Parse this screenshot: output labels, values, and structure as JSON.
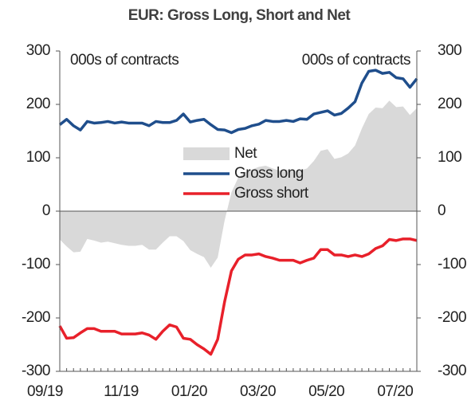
{
  "chart_data": {
    "type": "line",
    "title": "EUR:  Gross Long, Short and Net",
    "annotations": [
      "000s of contracts",
      "000s of contracts"
    ],
    "categories": [
      "09/19",
      null,
      null,
      null,
      null,
      null,
      null,
      null,
      null,
      null,
      null,
      "11/19",
      null,
      null,
      null,
      null,
      null,
      null,
      null,
      null,
      null,
      "01/20",
      null,
      null,
      null,
      null,
      null,
      null,
      null,
      null,
      null,
      "03/20",
      null,
      null,
      null,
      null,
      null,
      null,
      null,
      null,
      null,
      "05/20",
      null,
      null,
      null,
      null,
      null,
      null,
      null,
      null,
      null,
      "07/20",
      null
    ],
    "series": [
      {
        "name": "Net",
        "type": "area",
        "color": "#d9d9d9",
        "values": [
          -53,
          -66,
          -77,
          -76,
          -52,
          -55,
          -59,
          -57,
          -60,
          -63,
          -65,
          -65,
          -63,
          -72,
          -72,
          -59,
          -47,
          -47,
          -56,
          -73,
          -80,
          -86,
          -106,
          -87,
          -18,
          35,
          63,
          73,
          78,
          83,
          85,
          80,
          76,
          78,
          76,
          76,
          80,
          94,
          113,
          116,
          98,
          101,
          108,
          123,
          155,
          182,
          194,
          193,
          207,
          195,
          196,
          180,
          193
        ]
      },
      {
        "name": "Gross long",
        "type": "line",
        "color": "#1f4e8c",
        "values": [
          162,
          172,
          160,
          152,
          168,
          165,
          166,
          168,
          165,
          167,
          165,
          165,
          165,
          160,
          168,
          166,
          166,
          170,
          182,
          167,
          170,
          172,
          162,
          153,
          152,
          147,
          153,
          155,
          160,
          163,
          170,
          168,
          168,
          170,
          168,
          173,
          172,
          182,
          185,
          188,
          180,
          183,
          193,
          205,
          240,
          262,
          264,
          258,
          260,
          250,
          248,
          232,
          248
        ]
      },
      {
        "name": "Gross short",
        "type": "line",
        "color": "#e8202a",
        "values": [
          -215,
          -238,
          -237,
          -228,
          -220,
          -220,
          -225,
          -225,
          -225,
          -230,
          -230,
          -230,
          -228,
          -232,
          -240,
          -225,
          -213,
          -217,
          -238,
          -240,
          -250,
          -258,
          -268,
          -240,
          -170,
          -112,
          -90,
          -82,
          -82,
          -80,
          -85,
          -88,
          -92,
          -92,
          -92,
          -97,
          -92,
          -88,
          -72,
          -72,
          -82,
          -82,
          -85,
          -82,
          -85,
          -80,
          -70,
          -65,
          -53,
          -55,
          -52,
          -52,
          -55
        ]
      }
    ],
    "ylim": [
      -300,
      300
    ],
    "yticks": [
      -300,
      -200,
      -100,
      0,
      100,
      200,
      300
    ],
    "y2lim": [
      -300,
      300
    ],
    "y2ticks": [
      -300,
      -200,
      -100,
      0,
      100,
      200,
      300
    ],
    "legend": "center",
    "grid": false
  }
}
